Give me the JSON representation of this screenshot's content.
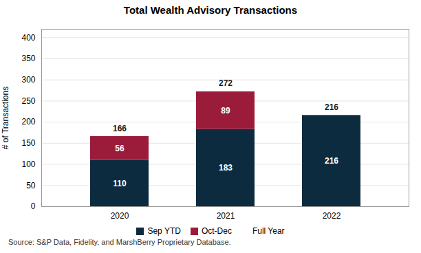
{
  "chart_data": {
    "type": "bar",
    "title": "Total Wealth Advisory Transactions",
    "ylabel": "# of Transactions",
    "categories": [
      "2020",
      "2021",
      "2022"
    ],
    "series": [
      {
        "name": "Sep YTD",
        "color": "#0d2b3e",
        "values": [
          110,
          183,
          216
        ]
      },
      {
        "name": "Oct-Dec",
        "color": "#9b1c3a",
        "values": [
          56,
          89,
          0
        ]
      }
    ],
    "totals": {
      "name": "Full Year",
      "values": [
        166,
        272,
        216
      ]
    },
    "stacked": true,
    "data_labels": true,
    "ylim": [
      0,
      420
    ],
    "yticks": [
      0,
      50,
      100,
      150,
      200,
      250,
      300,
      350,
      400
    ],
    "grid": true,
    "legend": "bottom",
    "annotation": "Source: S&P Data, Fidelity, and MarshBerry Proprietary Database."
  }
}
